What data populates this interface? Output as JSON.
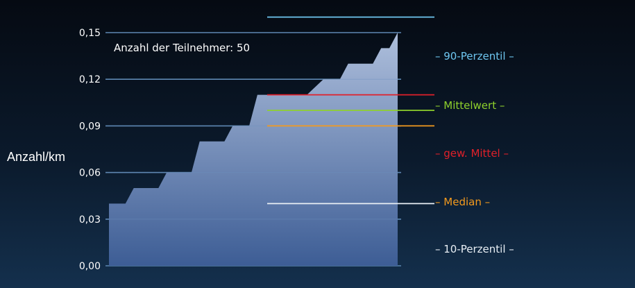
{
  "chart_data": {
    "type": "area",
    "ylabel": "Anzahl/km",
    "ylim": [
      0,
      0.15
    ],
    "yticks": [
      "0,00",
      "0,03",
      "0,06",
      "0,09",
      "0,12",
      "0,15"
    ],
    "grid": true,
    "annotation": "Anzahl der Teilnehmer: 50",
    "area_color": "#9fb6d6",
    "grid_color": "#5a86b0",
    "steps": [
      {
        "x": 0,
        "y": 0.04
      },
      {
        "x": 2,
        "y": 0.04
      },
      {
        "x": 3,
        "y": 0.05
      },
      {
        "x": 6,
        "y": 0.05
      },
      {
        "x": 7,
        "y": 0.06
      },
      {
        "x": 10,
        "y": 0.06
      },
      {
        "x": 11,
        "y": 0.08
      },
      {
        "x": 14,
        "y": 0.08
      },
      {
        "x": 15,
        "y": 0.09
      },
      {
        "x": 17,
        "y": 0.09
      },
      {
        "x": 18,
        "y": 0.11
      },
      {
        "x": 24,
        "y": 0.11
      },
      {
        "x": 26,
        "y": 0.12
      },
      {
        "x": 28,
        "y": 0.12
      },
      {
        "x": 29,
        "y": 0.13
      },
      {
        "x": 32,
        "y": 0.13
      },
      {
        "x": 33,
        "y": 0.14
      },
      {
        "x": 34,
        "y": 0.14
      },
      {
        "x": 35,
        "y": 0.15
      }
    ],
    "x_max": 35,
    "reference_lines": [
      {
        "name": "90-Perzentil",
        "value": 0.16,
        "color": "#6ec6f0"
      },
      {
        "name": "gew. Mittel",
        "value": 0.11,
        "color": "#e0202a"
      },
      {
        "name": "Mittelwert",
        "value": 0.1,
        "color": "#8fd12c"
      },
      {
        "name": "Median",
        "value": 0.09,
        "color": "#f39a1e"
      },
      {
        "name": "10-Perzentil",
        "value": 0.04,
        "color": "#e8eef4"
      }
    ],
    "legend": [
      {
        "label": "– 90-Perzentil –",
        "color": "#6ec6f0"
      },
      {
        "label": "– Mittelwert –",
        "color": "#8fd12c"
      },
      {
        "label": "– gew. Mittel –",
        "color": "#e0202a"
      },
      {
        "label": "– Median –",
        "color": "#f39a1e"
      },
      {
        "label": "– 10-Perzentil –",
        "color": "#e8eef4"
      }
    ]
  }
}
